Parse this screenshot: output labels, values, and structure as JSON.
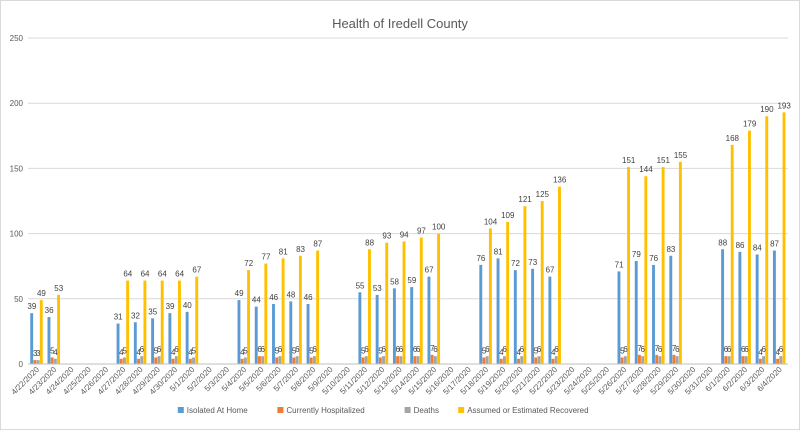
{
  "chart_data": {
    "type": "bar",
    "title": "Health of Iredell County",
    "xlabel": "",
    "ylabel": "",
    "ylim": [
      0,
      250
    ],
    "yticks": [
      0,
      50,
      100,
      150,
      200,
      250
    ],
    "grid": true,
    "legend_position": "bottom",
    "categories": [
      "4/22/2020",
      "4/23/2020",
      "4/24/2020",
      "4/25/2020",
      "4/26/2020",
      "4/27/2020",
      "4/28/2020",
      "4/29/2020",
      "4/30/2020",
      "5/1/2020",
      "5/2/2020",
      "5/3/2020",
      "5/4/2020",
      "5/5/2020",
      "5/6/2020",
      "5/7/2020",
      "5/8/2020",
      "5/9/2020",
      "5/10/2020",
      "5/11/2020",
      "5/12/2020",
      "5/13/2020",
      "5/14/2020",
      "5/15/2020",
      "5/16/2020",
      "5/17/2020",
      "5/18/2020",
      "5/19/2020",
      "5/20/2020",
      "5/21/2020",
      "5/22/2020",
      "5/23/2020",
      "5/24/2020",
      "5/25/2020",
      "5/26/2020",
      "5/27/2020",
      "5/28/2020",
      "5/29/2020",
      "5/30/2020",
      "5/31/2020",
      "6/1/2020",
      "6/2/2020",
      "6/3/2020",
      "6/4/2020"
    ],
    "series": [
      {
        "name": "Isolated At Home",
        "color": "#5b9bd5",
        "values": [
          39,
          36,
          null,
          null,
          null,
          31,
          32,
          35,
          39,
          40,
          null,
          null,
          49,
          44,
          46,
          48,
          46,
          null,
          null,
          55,
          53,
          58,
          59,
          67,
          null,
          null,
          76,
          81,
          72,
          73,
          67,
          null,
          null,
          null,
          71,
          79,
          76,
          83,
          null,
          null,
          88,
          86,
          84,
          87
        ]
      },
      {
        "name": "Currently Hospitalized",
        "color": "#ed7d31",
        "values": [
          3,
          5,
          null,
          null,
          null,
          4,
          4,
          5,
          4,
          4,
          null,
          null,
          4,
          6,
          5,
          5,
          5,
          null,
          null,
          5,
          5,
          6,
          6,
          7,
          null,
          null,
          5,
          4,
          4,
          5,
          4,
          null,
          null,
          null,
          5,
          7,
          7,
          7,
          null,
          null,
          6,
          6,
          4,
          4
        ]
      },
      {
        "name": "Deaths",
        "color": "#a5a5a5",
        "values": [
          3,
          4,
          null,
          null,
          null,
          5,
          6,
          6,
          6,
          5,
          null,
          null,
          5,
          6,
          6,
          6,
          6,
          null,
          null,
          6,
          6,
          6,
          6,
          6,
          null,
          null,
          6,
          6,
          6,
          6,
          6,
          null,
          null,
          null,
          6,
          6,
          6,
          6,
          null,
          null,
          6,
          6,
          6,
          6
        ]
      },
      {
        "name": "Assumed or Estimated Recovered",
        "color": "#ffc000",
        "values": [
          49,
          53,
          null,
          null,
          null,
          64,
          64,
          64,
          64,
          67,
          null,
          null,
          72,
          77,
          81,
          83,
          87,
          null,
          null,
          88,
          93,
          94,
          97,
          100,
          null,
          null,
          104,
          109,
          121,
          125,
          136,
          null,
          null,
          null,
          151,
          144,
          151,
          155,
          null,
          null,
          168,
          179,
          190,
          193
        ]
      }
    ]
  }
}
